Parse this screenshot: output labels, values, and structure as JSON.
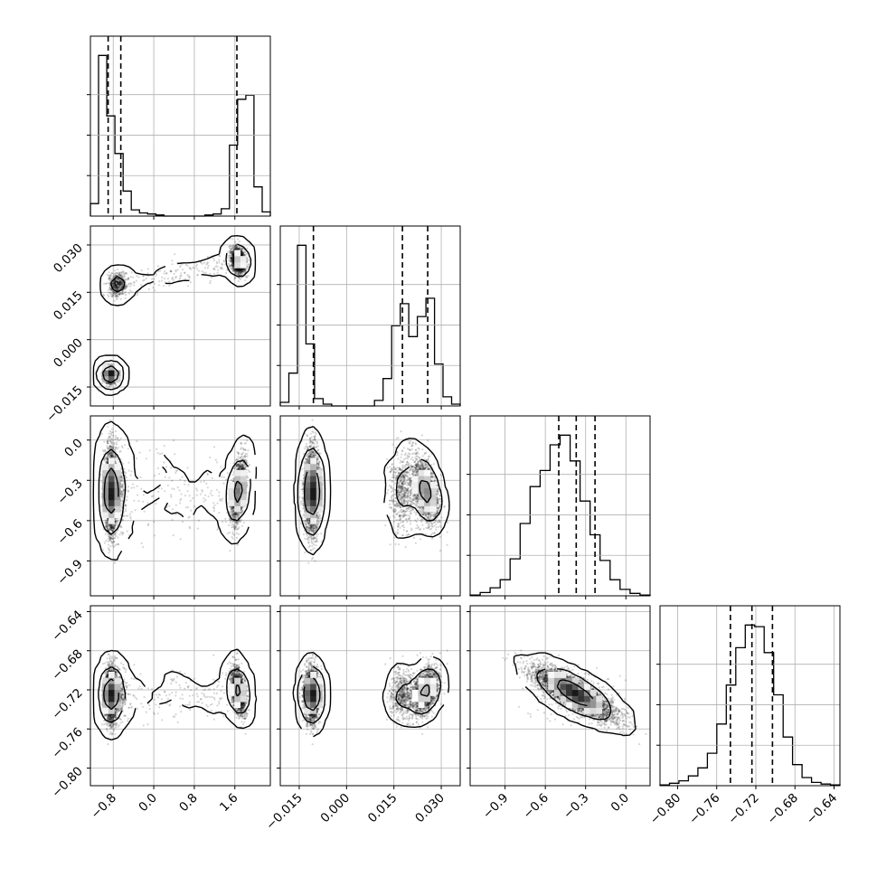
{
  "chart_data": {
    "type": "corner",
    "n_params": 4,
    "colors": {
      "ink": "#000000",
      "grid": "#b0b0b0",
      "background": "#ffffff"
    },
    "parameters": [
      {
        "range": [
          -1.25,
          2.3
        ],
        "ticks": [
          -0.8,
          0.0,
          0.8,
          1.6
        ],
        "tick_labels": [
          "−0.8",
          "0.0",
          "0.8",
          "1.6"
        ],
        "quantiles": [
          -0.9,
          -0.65,
          1.64
        ]
      },
      {
        "range": [
          -0.021,
          0.036
        ],
        "ticks": [
          -0.015,
          0.0,
          0.015,
          0.03
        ],
        "tick_labels": [
          "−0.015",
          "0.000",
          "0.015",
          "0.030"
        ],
        "quantiles": [
          -0.0105,
          0.0177,
          0.0257
        ]
      },
      {
        "range": [
          -1.16,
          0.18
        ],
        "ticks": [
          -0.9,
          -0.6,
          -0.3,
          0.0
        ],
        "tick_labels": [
          "−0.9",
          "−0.6",
          "−0.3",
          "0.0"
        ],
        "quantiles": [
          -0.5,
          -0.37,
          -0.23
        ]
      },
      {
        "range": [
          -0.818,
          -0.634
        ],
        "ticks": [
          -0.8,
          -0.76,
          -0.72,
          -0.68,
          -0.64
        ],
        "tick_labels": [
          "−0.80",
          "−0.76",
          "−0.72",
          "−0.68",
          "−0.64"
        ],
        "quantiles": [
          -0.746,
          -0.724,
          -0.703
        ]
      }
    ],
    "histograms": [
      {
        "counts": [
          0.06,
          0.77,
          0.48,
          0.3,
          0.12,
          0.03,
          0.015,
          0.01,
          0.005,
          0,
          0,
          0,
          0,
          0,
          0.005,
          0.01,
          0.035,
          0.34,
          0.56,
          0.58,
          0.14,
          0.02
        ],
        "xmin": -1.25,
        "xmax": 2.3
      },
      {
        "counts": [
          0.02,
          0.18,
          0.88,
          0.34,
          0.04,
          0.01,
          0,
          0,
          0,
          0,
          0,
          0.03,
          0.15,
          0.44,
          0.56,
          0.38,
          0.49,
          0.59,
          0.23,
          0.05,
          0.01
        ],
        "xmin": -0.021,
        "xmax": 0.036
      },
      {
        "counts": [
          0.005,
          0.02,
          0.05,
          0.1,
          0.23,
          0.45,
          0.68,
          0.78,
          0.94,
          1.0,
          0.84,
          0.59,
          0.38,
          0.22,
          0.1,
          0.04,
          0.015,
          0.005
        ],
        "xmin": -1.16,
        "xmax": 0.18
      },
      {
        "counts": [
          0.005,
          0.015,
          0.03,
          0.06,
          0.11,
          0.2,
          0.38,
          0.62,
          0.85,
          0.99,
          0.98,
          0.82,
          0.56,
          0.3,
          0.13,
          0.05,
          0.02,
          0.01,
          0.005
        ],
        "xmin": -0.818,
        "xmax": -0.634
      }
    ],
    "clusters": [
      {
        "weight": 0.58,
        "p0": -0.85,
        "p1": -0.011,
        "p2": -0.38,
        "p3": -0.725
      },
      {
        "weight": 0.08,
        "p0": -0.72,
        "p1": 0.0175,
        "p2": -0.38,
        "p3": -0.725
      },
      {
        "weight": 0.34,
        "p0": 1.67,
        "p1": 0.025,
        "p2": -0.38,
        "p3": -0.721
      }
    ],
    "contour_levels": [
      0.393,
      0.865,
      0.989
    ]
  }
}
